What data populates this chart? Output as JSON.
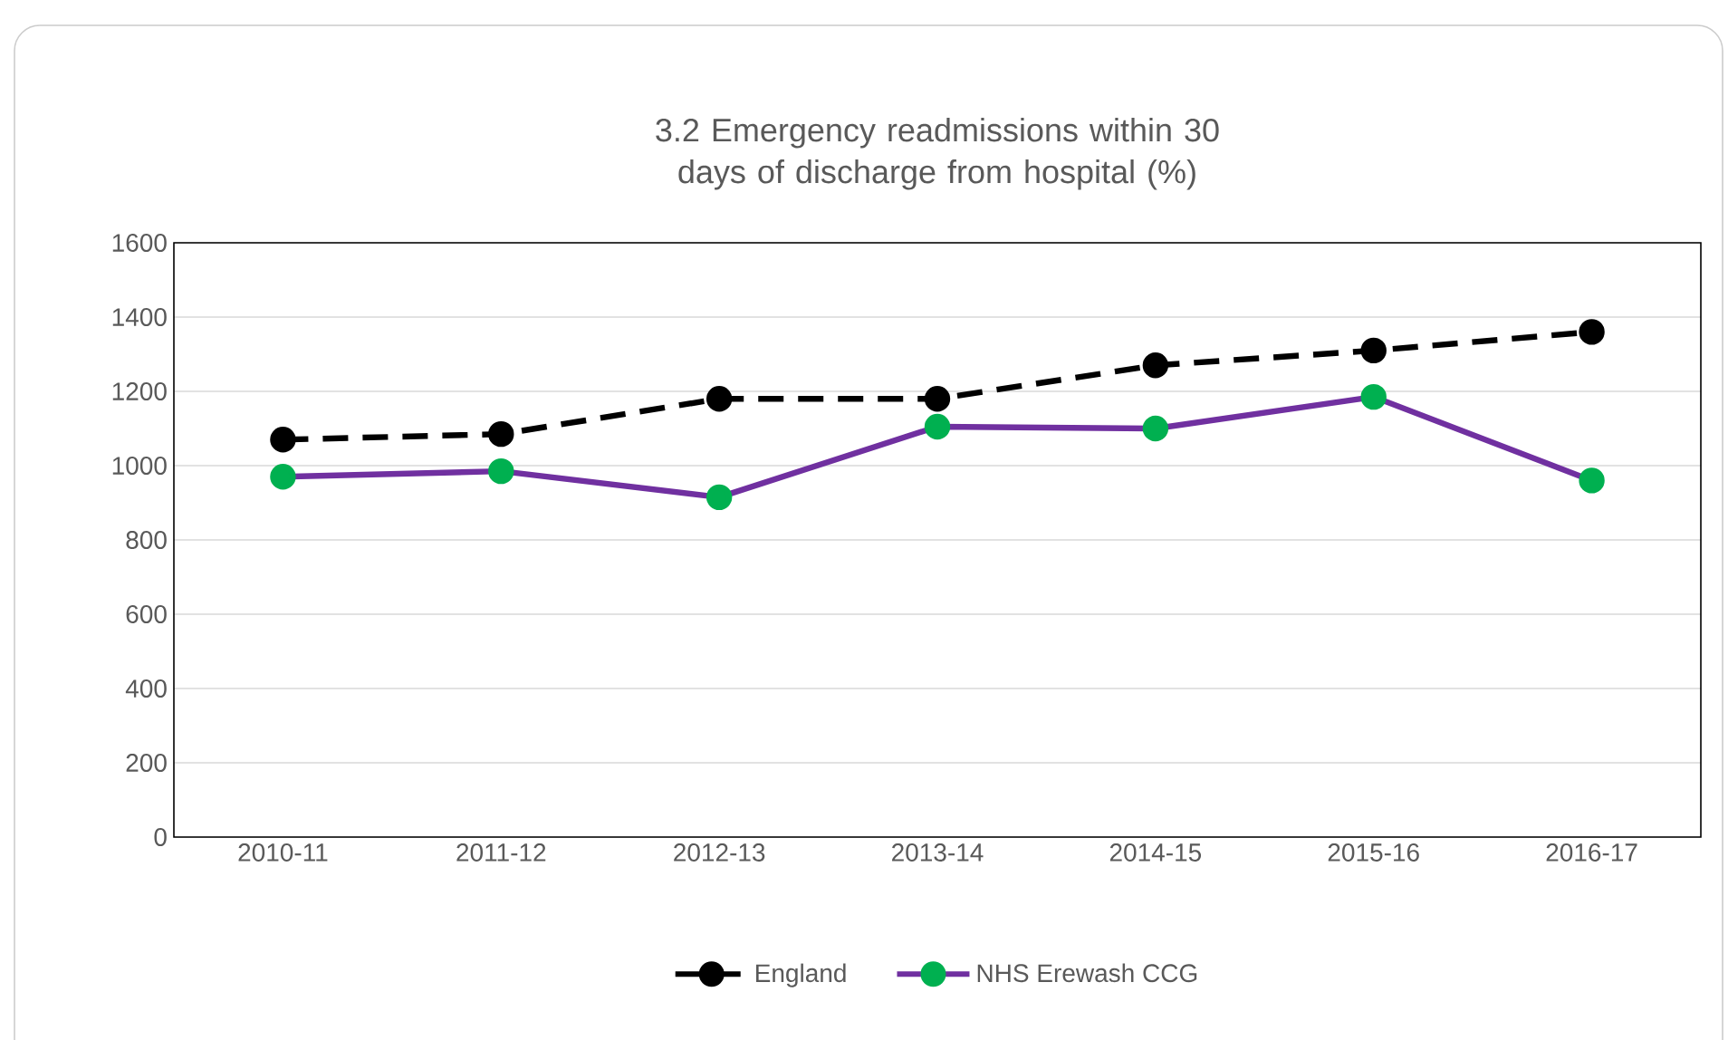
{
  "chart_data": {
    "type": "line",
    "title": "3.2 Emergency readmissions within 30 days of discharge from hospital (%)",
    "categories": [
      "2010-11",
      "2011-12",
      "2012-13",
      "2013-14",
      "2014-15",
      "2015-16",
      "2016-17"
    ],
    "series": [
      {
        "name": "England",
        "color": "#000000",
        "line_style": "dashed",
        "values": [
          1070,
          1085,
          1180,
          1180,
          1270,
          1310,
          1360
        ]
      },
      {
        "name": "NHS Erewash CCG",
        "color": "#7030a0",
        "line_style": "solid",
        "values": [
          970,
          985,
          915,
          1105,
          1100,
          1185,
          960
        ]
      }
    ],
    "ylim": [
      0,
      1600
    ],
    "yticks": [
      0,
      200,
      400,
      600,
      800,
      1000,
      1200,
      1400,
      1600
    ],
    "grid": "y",
    "legend": "bottom",
    "marker": "circle"
  }
}
